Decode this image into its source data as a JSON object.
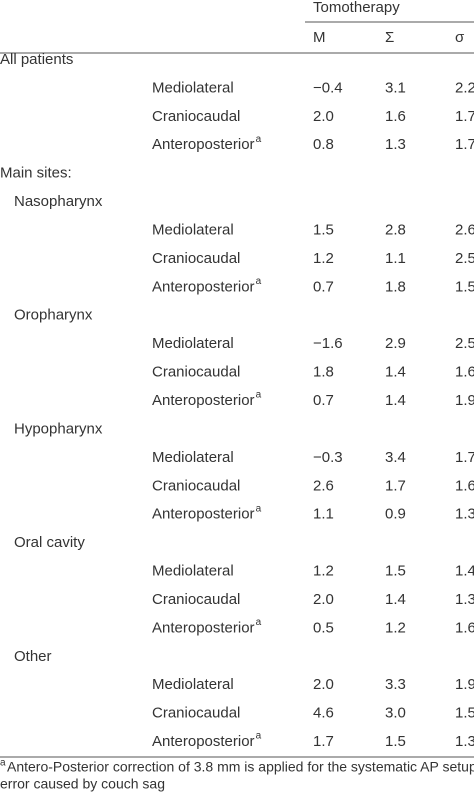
{
  "header": {
    "group": "Tomotherapy",
    "columns": [
      "M",
      "Σ",
      "σ"
    ]
  },
  "all_patients": {
    "label": "All patients",
    "rows": [
      {
        "label": "Mediolateral",
        "values": [
          "−0.4",
          "3.1",
          "2.2"
        ]
      },
      {
        "label": "Craniocaudal",
        "values": [
          "2.0",
          "1.6",
          "1.7"
        ]
      },
      {
        "label": "Anteroposterior",
        "mark": "a",
        "values": [
          "0.8",
          "1.3",
          "1.7"
        ]
      }
    ]
  },
  "main_sites": {
    "label": "Main sites:",
    "groups": [
      {
        "label": "Nasopharynx",
        "rows": [
          {
            "label": "Mediolateral",
            "values": [
              "1.5",
              "2.8",
              "2.6"
            ]
          },
          {
            "label": "Craniocaudal",
            "values": [
              "1.2",
              "1.1",
              "2.5"
            ]
          },
          {
            "label": "Anteroposterior",
            "mark": "a",
            "values": [
              "0.7",
              "1.8",
              "1.5"
            ]
          }
        ]
      },
      {
        "label": "Oropharynx",
        "rows": [
          {
            "label": "Mediolateral",
            "values": [
              "−1.6",
              "2.9",
              "2.5"
            ]
          },
          {
            "label": "Craniocaudal",
            "values": [
              "1.8",
              "1.4",
              "1.6"
            ]
          },
          {
            "label": "Anteroposterior",
            "mark": "a",
            "values": [
              "0.7",
              "1.4",
              "1.9"
            ]
          }
        ]
      },
      {
        "label": "Hypopharynx",
        "rows": [
          {
            "label": "Mediolateral",
            "values": [
              "−0.3",
              "3.4",
              "1.7"
            ]
          },
          {
            "label": "Craniocaudal",
            "values": [
              "2.6",
              "1.7",
              "1.6"
            ]
          },
          {
            "label": "Anteroposterior",
            "mark": "a",
            "values": [
              "1.1",
              "0.9",
              "1.3"
            ]
          }
        ]
      },
      {
        "label": "Oral cavity",
        "rows": [
          {
            "label": "Mediolateral",
            "values": [
              "1.2",
              "1.5",
              "1.4"
            ]
          },
          {
            "label": "Craniocaudal",
            "values": [
              "2.0",
              "1.4",
              "1.3"
            ]
          },
          {
            "label": "Anteroposterior",
            "mark": "a",
            "values": [
              "0.5",
              "1.2",
              "1.6"
            ]
          }
        ]
      },
      {
        "label": "Other",
        "rows": [
          {
            "label": "Mediolateral",
            "values": [
              "2.0",
              "3.3",
              "1.9"
            ]
          },
          {
            "label": "Craniocaudal",
            "values": [
              "4.6",
              "3.0",
              "1.5"
            ]
          },
          {
            "label": "Anteroposterior",
            "mark": "a",
            "values": [
              "1.7",
              "1.5",
              "1.3"
            ]
          }
        ]
      }
    ]
  },
  "footnote": {
    "mark": "a",
    "lines": [
      "Antero-Posterior correction of 3.8 mm is applied for the systematic AP setup",
      "error caused by couch sag"
    ]
  }
}
